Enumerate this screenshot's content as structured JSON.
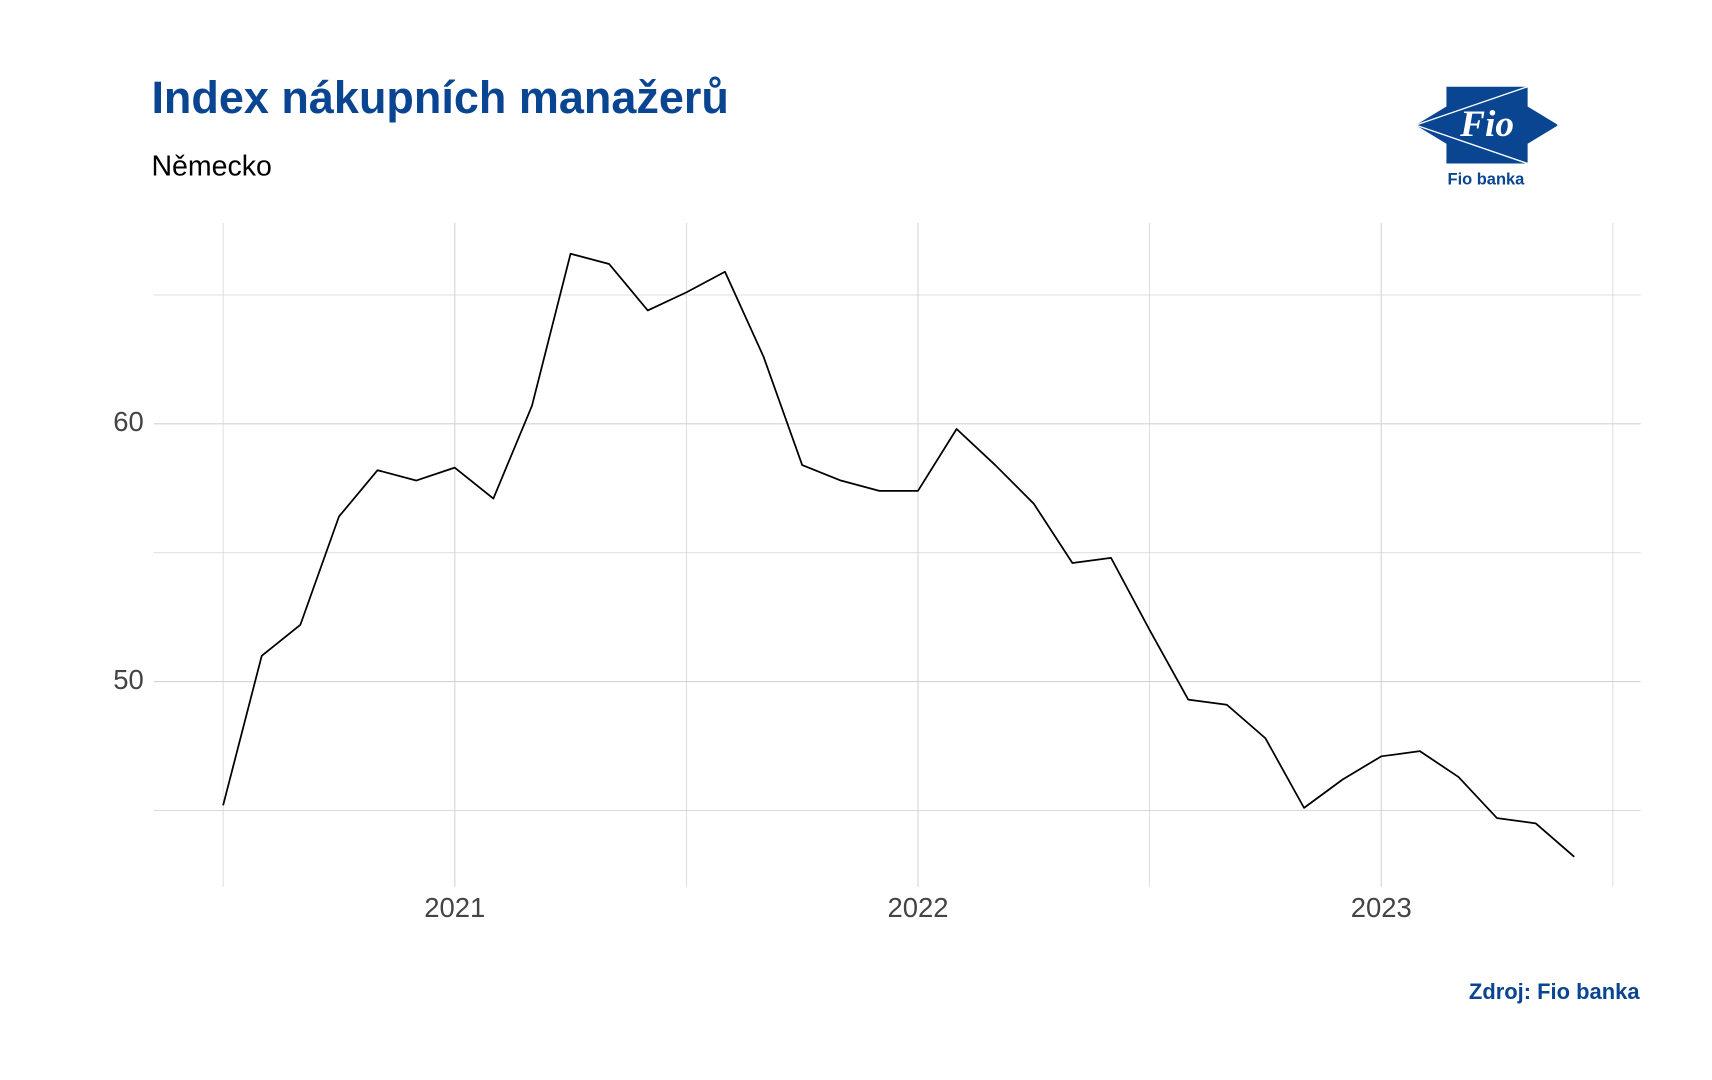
{
  "chart_data": {
    "type": "line",
    "title": "Index nákupních manažerů",
    "subtitle": "Německo",
    "source": "Zdroj: Fio banka",
    "x": [
      "2020-06",
      "2020-07",
      "2020-08",
      "2020-09",
      "2020-10",
      "2020-11",
      "2020-12",
      "2021-01",
      "2021-02",
      "2021-03",
      "2021-04",
      "2021-05",
      "2021-06",
      "2021-07",
      "2021-08",
      "2021-09",
      "2021-10",
      "2021-11",
      "2021-12",
      "2022-01",
      "2022-02",
      "2022-03",
      "2022-04",
      "2022-05",
      "2022-06",
      "2022-07",
      "2022-08",
      "2022-09",
      "2022-10",
      "2022-11",
      "2022-12",
      "2023-01",
      "2023-02",
      "2023-03",
      "2023-04",
      "2023-05"
    ],
    "series": [
      {
        "color": "#000000",
        "values": [
          45.2,
          51.0,
          52.2,
          56.4,
          58.2,
          57.8,
          58.3,
          57.1,
          60.7,
          66.6,
          66.2,
          64.4,
          65.1,
          65.9,
          62.6,
          58.4,
          57.8,
          57.4,
          57.4,
          59.8,
          58.4,
          56.9,
          54.6,
          54.8,
          52.0,
          49.3,
          49.1,
          47.8,
          45.1,
          46.2,
          47.1,
          47.3,
          46.3,
          44.7,
          44.5,
          43.2
        ]
      }
    ],
    "xlim": [
      2020.35,
      2023.56
    ],
    "xticks": [
      2021,
      2022,
      2023
    ],
    "ylim": [
      42.04,
      67.8
    ],
    "yticks": [
      50,
      60
    ],
    "grid": true
  },
  "logo": {
    "mark": "Fio",
    "caption": "Fio banka"
  }
}
